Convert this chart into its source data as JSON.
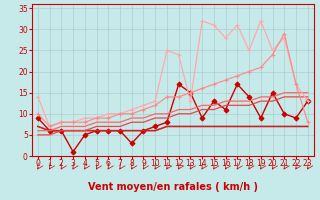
{
  "xlabel": "Vent moyen/en rafales ( km/h )",
  "xlim": [
    -0.5,
    23.5
  ],
  "ylim": [
    0,
    36
  ],
  "yticks": [
    0,
    5,
    10,
    15,
    20,
    25,
    30,
    35
  ],
  "xticks": [
    0,
    1,
    2,
    3,
    4,
    5,
    6,
    7,
    8,
    9,
    10,
    11,
    12,
    13,
    14,
    15,
    16,
    17,
    18,
    19,
    20,
    21,
    22,
    23
  ],
  "background_color": "#c6eaea",
  "grid_color": "#b0cccc",
  "lines": [
    {
      "x": [
        0,
        1,
        2,
        3,
        4,
        5,
        6,
        7,
        8,
        9,
        10,
        11,
        12,
        13,
        14,
        15,
        16,
        17,
        18,
        19,
        20,
        21,
        22,
        23
      ],
      "y": [
        9,
        6,
        6,
        1,
        5,
        6,
        6,
        6,
        3,
        6,
        7,
        8,
        17,
        15,
        9,
        13,
        11,
        17,
        14,
        9,
        15,
        10,
        9,
        13
      ],
      "color": "#cc0000",
      "marker": "D",
      "markersize": 2.5,
      "linewidth": 1.0
    },
    {
      "x": [
        0,
        1,
        2,
        3,
        4,
        5,
        6,
        7,
        8,
        9,
        10,
        11,
        12,
        13,
        14,
        15,
        16,
        17,
        18,
        19,
        20,
        21,
        22,
        23
      ],
      "y": [
        7,
        6,
        6,
        6,
        6,
        6,
        6,
        6,
        6,
        6,
        6,
        7,
        7,
        7,
        7,
        7,
        7,
        7,
        7,
        7,
        7,
        7,
        7,
        7
      ],
      "color": "#cc2222",
      "marker": null,
      "markersize": 0,
      "linewidth": 1.2
    },
    {
      "x": [
        0,
        1,
        2,
        3,
        4,
        5,
        6,
        7,
        8,
        9,
        10,
        11,
        12,
        13,
        14,
        15,
        16,
        17,
        18,
        19,
        20,
        21,
        22,
        23
      ],
      "y": [
        5,
        5,
        6,
        6,
        6,
        7,
        7,
        7,
        8,
        8,
        9,
        9,
        10,
        10,
        11,
        11,
        12,
        12,
        12,
        13,
        13,
        14,
        14,
        14
      ],
      "color": "#ee4444",
      "marker": null,
      "markersize": 0,
      "linewidth": 0.9
    },
    {
      "x": [
        0,
        1,
        2,
        3,
        4,
        5,
        6,
        7,
        8,
        9,
        10,
        11,
        12,
        13,
        14,
        15,
        16,
        17,
        18,
        19,
        20,
        21,
        22,
        23
      ],
      "y": [
        6,
        6,
        7,
        7,
        7,
        8,
        8,
        8,
        9,
        9,
        10,
        10,
        11,
        11,
        12,
        12,
        13,
        13,
        13,
        14,
        14,
        15,
        15,
        15
      ],
      "color": "#ff6666",
      "marker": null,
      "markersize": 0,
      "linewidth": 0.9
    },
    {
      "x": [
        0,
        1,
        2,
        3,
        4,
        5,
        6,
        7,
        8,
        9,
        10,
        11,
        12,
        13,
        14,
        15,
        16,
        17,
        18,
        19,
        20,
        21,
        22,
        23
      ],
      "y": [
        14,
        7,
        8,
        8,
        9,
        9,
        10,
        10,
        11,
        12,
        13,
        25,
        24,
        13,
        32,
        31,
        28,
        31,
        25,
        32,
        25,
        28,
        17,
        13
      ],
      "color": "#ffaaaa",
      "marker": "+",
      "markersize": 3.5,
      "linewidth": 0.9
    },
    {
      "x": [
        0,
        1,
        2,
        3,
        4,
        5,
        6,
        7,
        8,
        9,
        10,
        11,
        12,
        13,
        14,
        15,
        16,
        17,
        18,
        19,
        20,
        21,
        22,
        23
      ],
      "y": [
        10,
        7,
        8,
        8,
        8,
        9,
        9,
        10,
        10,
        11,
        12,
        14,
        14,
        15,
        16,
        17,
        18,
        19,
        20,
        21,
        24,
        29,
        17,
        8
      ],
      "color": "#ff8888",
      "marker": "+",
      "markersize": 3,
      "linewidth": 0.85
    }
  ],
  "arrow_color": "#cc0000",
  "xlabel_color": "#cc0000",
  "tick_color": "#cc0000",
  "xlabel_fontsize": 7,
  "tick_fontsize": 5.5
}
